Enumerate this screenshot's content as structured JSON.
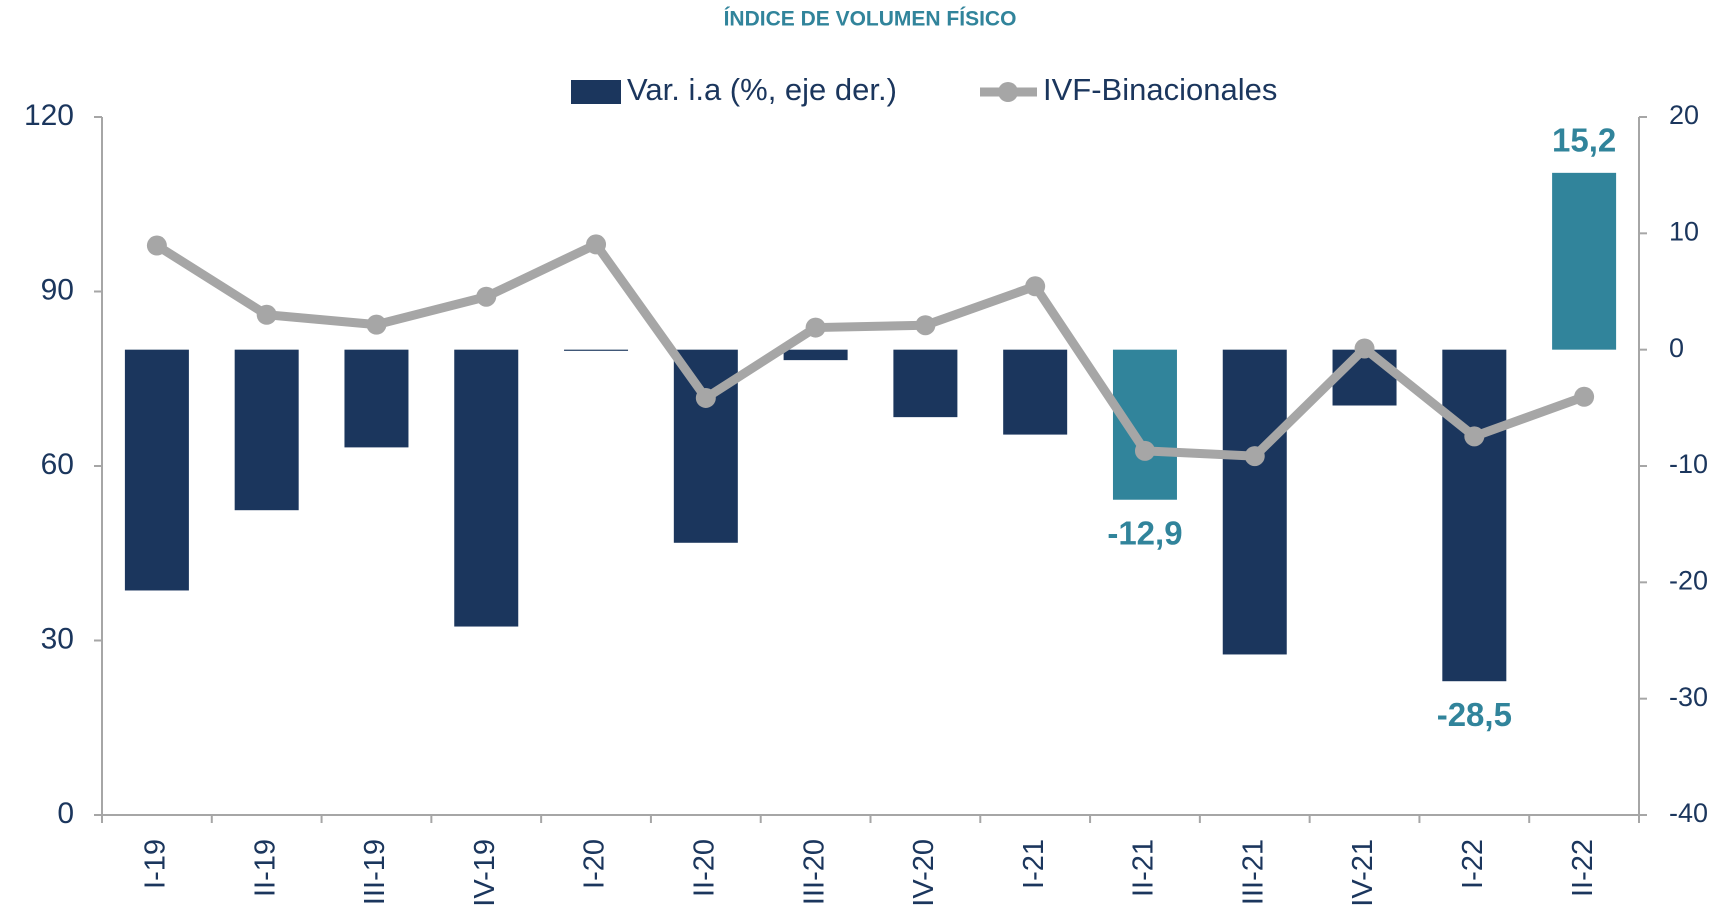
{
  "chart_data": {
    "type": "bar",
    "title": "ÍNDICE DE VOLUMEN FÍSICO",
    "categories": [
      "I-19",
      "II-19",
      "III-19",
      "IV-19",
      "I-20",
      "II-20",
      "III-20",
      "IV-20",
      "I-21",
      "II-21",
      "III-21",
      "IV-21",
      "I-22",
      "II-22"
    ],
    "series": [
      {
        "name": "Var. i.a (%, eje der.)",
        "type": "bar",
        "axis": "y2",
        "color": "#1b365d",
        "colors": [
          "#1b365d",
          "#1b365d",
          "#1b365d",
          "#1b365d",
          "#1b365d",
          "#1b365d",
          "#1b365d",
          "#1b365d",
          "#1b365d",
          "#31849b",
          "#1b365d",
          "#1b365d",
          "#1b365d",
          "#31849b"
        ],
        "values": [
          -20.7,
          -13.8,
          -8.4,
          -23.8,
          -0.1,
          -16.6,
          -0.9,
          -5.8,
          -7.3,
          -12.9,
          -26.2,
          -4.8,
          -28.5,
          15.2
        ],
        "value_labels": [
          null,
          null,
          null,
          null,
          null,
          null,
          null,
          null,
          null,
          "-12,9",
          null,
          null,
          "-28,5",
          "15,2"
        ],
        "label_color": "#31849b"
      },
      {
        "name": "IVF-Binacionales",
        "type": "line",
        "color": "#a6a6a6",
        "values": [
          97.9,
          86.0,
          84.3,
          89.1,
          98.1,
          71.7,
          83.8,
          84.2,
          90.9,
          62.6,
          61.7,
          80.2,
          65.1,
          71.9
        ]
      }
    ],
    "ylim": [
      0,
      120
    ],
    "yticks": [
      0,
      30,
      60,
      90,
      120
    ],
    "y2lim": [
      -40,
      20
    ],
    "y2ticks": [
      -40,
      -30,
      -20,
      -10,
      0,
      10,
      20
    ],
    "legend": "top"
  }
}
